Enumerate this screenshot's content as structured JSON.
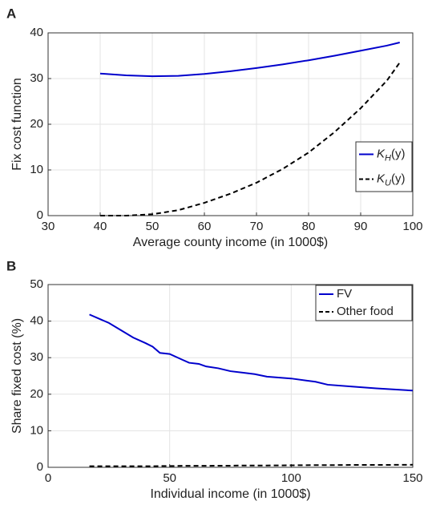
{
  "chart_data": [
    {
      "type": "line",
      "panel": "A",
      "xlabel": "Average county income (in 1000$)",
      "ylabel": "Fix cost function",
      "x": [
        40,
        45,
        50,
        55,
        60,
        65,
        70,
        75,
        80,
        85,
        90,
        95,
        97.5
      ],
      "series": [
        {
          "name": [
            "K",
            "H",
            "(y)"
          ],
          "color": "#0000cc",
          "dash": false,
          "values": [
            31.1,
            30.7,
            30.5,
            30.6,
            31.0,
            31.6,
            32.3,
            33.1,
            34.0,
            35.0,
            36.1,
            37.2,
            37.9
          ]
        },
        {
          "name": [
            "K",
            "U",
            "(y)"
          ],
          "color": "#000000",
          "dash": true,
          "values": [
            0,
            0,
            0.3,
            1.2,
            2.8,
            4.8,
            7.2,
            10.2,
            13.8,
            18.3,
            23.5,
            29.5,
            33.5
          ]
        }
      ],
      "xlim": [
        30,
        100
      ],
      "xticks": [
        30,
        40,
        50,
        60,
        70,
        80,
        90,
        100
      ],
      "ylim": [
        0,
        40
      ],
      "yticks": [
        0,
        10,
        20,
        30,
        40
      ],
      "grid": true,
      "legend": "east"
    },
    {
      "type": "line",
      "panel": "B",
      "xlabel": "Individual income (in 1000$)",
      "ylabel": "Share fixed cost (%)",
      "x": [
        17,
        25,
        30,
        35,
        40,
        43,
        46,
        50,
        55,
        58,
        62,
        65,
        70,
        75,
        80,
        85,
        90,
        100,
        110,
        115,
        125,
        135,
        150
      ],
      "series": [
        {
          "name": [
            "FV"
          ],
          "color": "#0000cc",
          "dash": false,
          "values": [
            41.8,
            39.5,
            37.5,
            35.5,
            34.0,
            33.0,
            31.3,
            31.0,
            29.5,
            28.6,
            28.3,
            27.6,
            27.1,
            26.3,
            25.9,
            25.5,
            24.8,
            24.3,
            23.4,
            22.6,
            22.1,
            21.6,
            21.0
          ]
        },
        {
          "name": [
            "Other food"
          ],
          "color": "#000000",
          "dash": true,
          "values": [
            0.3,
            0.3,
            0.3,
            0.3,
            0.3,
            0.3,
            0.35,
            0.35,
            0.4,
            0.4,
            0.4,
            0.4,
            0.45,
            0.45,
            0.5,
            0.5,
            0.5,
            0.55,
            0.6,
            0.6,
            0.65,
            0.65,
            0.7
          ]
        }
      ],
      "xlim": [
        0,
        150
      ],
      "xticks": [
        0,
        50,
        100,
        150
      ],
      "ylim": [
        0,
        50
      ],
      "yticks": [
        0,
        10,
        20,
        30,
        40,
        50
      ],
      "grid": true,
      "legend": "northeast"
    }
  ]
}
